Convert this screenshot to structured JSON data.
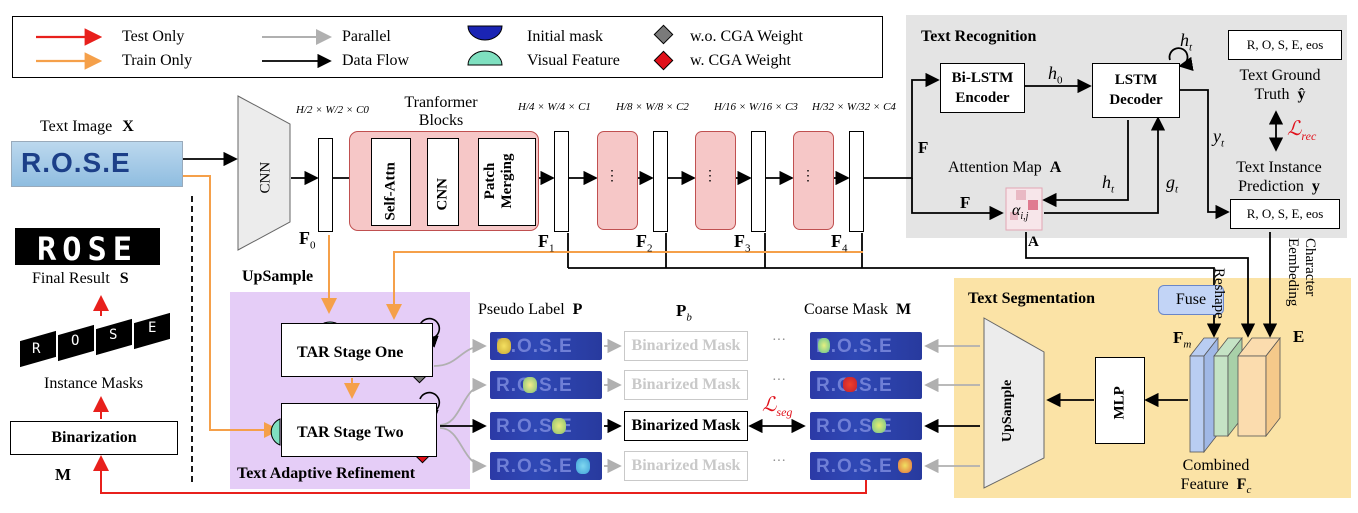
{
  "legend": {
    "test_only": "Test Only",
    "train_only": "Train Only",
    "parallel": "Parallel",
    "data_flow": "Data Flow",
    "initial_mask": "Initial mask",
    "visual_feature": "Visual Feature",
    "wo_cga": "w.o. CGA Weight",
    "w_cga": "w.  CGA Weight",
    "colors": {
      "test": "#e8201c",
      "train": "#f5a04a",
      "parallel": "#b0b0b0",
      "mask": "#1a24b4",
      "visual": "#7fe0c0",
      "wo": "#7a7a7a",
      "w": "#e0101a"
    }
  },
  "left": {
    "text_image_label": "Text Image",
    "text_image_sym": "X",
    "text_image_content": "R.O.S.E",
    "final_word": "ROSE",
    "final_result_label": "Final Result",
    "final_result_sym": "S",
    "instance_letters": [
      "R",
      "O",
      "S",
      "E"
    ],
    "instance_masks_label": "Instance Masks",
    "binarization": "Binarization",
    "m_sym": "M"
  },
  "encoder": {
    "cnn": "CNN",
    "f0_sym": "F",
    "f0_sub": "0",
    "dim0": "H/2 × W/2 × C0",
    "transformer_title_1": "Tranformer",
    "transformer_title_2": "Blocks",
    "self_attn": "Self-Attn",
    "inner_cnn": "CNN",
    "patch_merging_1": "Patch",
    "patch_merging_2": "Merging",
    "dims": [
      "H/4 × W/4 × C1",
      "H/8 × W/8 × C2",
      "H/16 × W/16 × C3",
      "H/32 × W/32 × C4"
    ],
    "features": [
      "1",
      "2",
      "3",
      "4"
    ],
    "dots": "⋮"
  },
  "recognition": {
    "title": "Text Recognition",
    "encoder_1": "Bi-LSTM",
    "encoder_2": "Encoder",
    "decoder_1": "LSTM",
    "decoder_2": "Decoder",
    "h0": "h0",
    "ht": "ht",
    "gt": "gt",
    "yt": "yt",
    "F": "F",
    "attention_map": "Attention Map",
    "attention_sym": "A",
    "alpha": "αi,j",
    "ground_truth_box": "R, O, S, E, eos",
    "ground_truth_1": "Text Ground",
    "ground_truth_2": "Truth",
    "ground_truth_sym": "ŷ",
    "loss_rec": "ℒrec",
    "instance_pred_1": "Text Instance",
    "instance_pred_2": "Prediction",
    "instance_pred_sym": "y",
    "pred_box": "R, O, S, E, eos"
  },
  "refinement": {
    "upsample": "UpSample",
    "stage_one": "TAR Stage One",
    "stage_two": "TAR Stage Two",
    "title": "Text Adaptive Refinement"
  },
  "masks": {
    "pseudo_label": "Pseudo Label",
    "pseudo_sym": "P",
    "pb_sym": "P",
    "pb_sub": "b",
    "coarse_mask": "Coarse Mask",
    "coarse_sym": "M",
    "binarized": "Binarized Mask",
    "loss_seg": "ℒseg",
    "row_text": "R.O.S.E",
    "ellipsis": "···"
  },
  "segmentation": {
    "title": "Text Segmentation",
    "fuse": "Fuse",
    "fm_sym": "F",
    "fm_sub": "m",
    "upsample": "UpSample",
    "mlp": "MLP",
    "combined_1": "Combined",
    "combined_2": "Feature",
    "fc_sym": "F",
    "fc_sub": "c",
    "reshape": "Reshape",
    "char_embedding": "Character Eembeding",
    "e_sym": "E",
    "a_sym": "A"
  }
}
